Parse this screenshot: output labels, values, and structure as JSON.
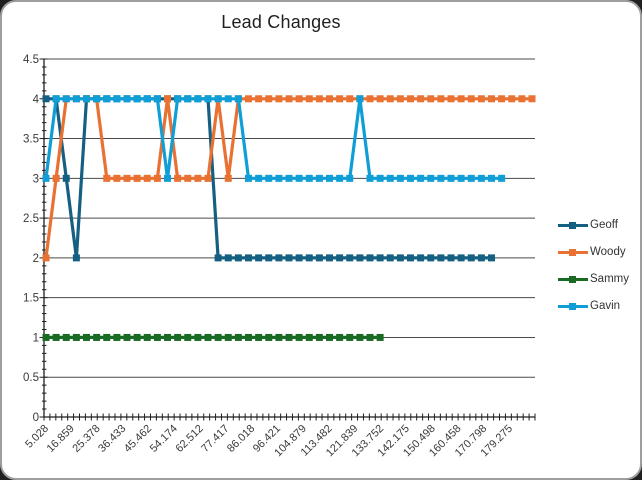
{
  "chart_data": {
    "type": "line",
    "title": "Lead Changes",
    "x_labels": [
      "5.028",
      "16.859",
      "25.378",
      "36.433",
      "45.462",
      "54.174",
      "62.512",
      "77.417",
      "86.018",
      "96.421",
      "104.879",
      "113.482",
      "121.839",
      "133.752",
      "142.175",
      "150.498",
      "160.458",
      "170.798",
      "179.275"
    ],
    "y_ticks": [
      "0",
      "0.5",
      "1",
      "1.5",
      "2",
      "2.5",
      "3",
      "3.5",
      "4",
      "4.5"
    ],
    "ylim": [
      0,
      4.5
    ],
    "grid": "horizontal",
    "legend_position": "right",
    "marker": "square",
    "n_points": 49,
    "series": [
      {
        "name": "Geoff",
        "color": "#156082",
        "values": [
          4,
          4,
          3,
          2,
          4,
          4,
          4,
          4,
          4,
          4,
          4,
          4,
          4,
          4,
          4,
          4,
          4,
          2,
          2,
          2,
          2,
          2,
          2,
          2,
          2,
          2,
          2,
          2,
          2,
          2,
          2,
          2,
          2,
          2,
          2,
          2,
          2,
          2,
          2,
          2,
          2,
          2,
          2,
          2,
          2,
          null,
          null,
          null,
          null
        ]
      },
      {
        "name": "Woody",
        "color": "#E97132",
        "values": [
          2,
          3,
          4,
          4,
          4,
          4,
          3,
          3,
          3,
          3,
          3,
          3,
          4,
          3,
          3,
          3,
          3,
          4,
          3,
          4,
          4,
          4,
          4,
          4,
          4,
          4,
          4,
          4,
          4,
          4,
          4,
          4,
          4,
          4,
          4,
          4,
          4,
          4,
          4,
          4,
          4,
          4,
          4,
          4,
          4,
          4,
          4,
          4,
          4
        ]
      },
      {
        "name": "Sammy",
        "color": "#196B24",
        "values": [
          1,
          1,
          1,
          1,
          1,
          1,
          1,
          1,
          1,
          1,
          1,
          1,
          1,
          1,
          1,
          1,
          1,
          1,
          1,
          1,
          1,
          1,
          1,
          1,
          1,
          1,
          1,
          1,
          1,
          1,
          1,
          1,
          1,
          1,
          null,
          null,
          null,
          null,
          null,
          null,
          null,
          null,
          null,
          null,
          null,
          null,
          null,
          null,
          null
        ]
      },
      {
        "name": "Gavin",
        "color": "#0F9ED5",
        "values": [
          3,
          4,
          4,
          4,
          4,
          4,
          4,
          4,
          4,
          4,
          4,
          4,
          3,
          4,
          4,
          4,
          4,
          4,
          4,
          4,
          3,
          3,
          3,
          3,
          3,
          3,
          3,
          3,
          3,
          3,
          3,
          4,
          3,
          3,
          3,
          3,
          3,
          3,
          3,
          3,
          3,
          3,
          3,
          3,
          3,
          3,
          null,
          null,
          null
        ]
      }
    ]
  }
}
